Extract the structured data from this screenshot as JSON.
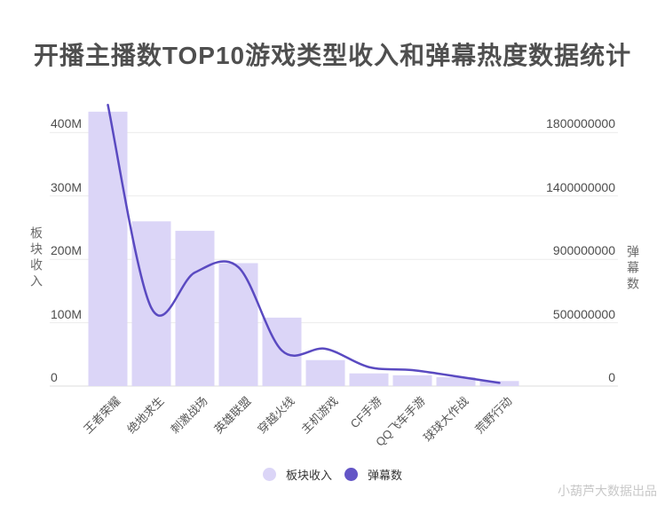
{
  "title": "开播主播数TOP10游戏类型收入和弹幕热度数据统计",
  "watermark": "小葫芦大数据出品",
  "colors": {
    "background": "#ffffff",
    "bar": "#dbd5f7",
    "line": "#5a4ac1",
    "gridline": "#ebebeb",
    "axis_line": "#dcdcdc",
    "title_text": "#4f4f4f",
    "tick_text": "#4d4d4d",
    "category_text": "#565656",
    "legend_dark_dot": "#6355c6",
    "watermark_text": "#c8c8c8"
  },
  "left_axis": {
    "title": "板块收入",
    "ticks": [
      "0",
      "100M",
      "200M",
      "300M",
      "400M"
    ]
  },
  "right_axis": {
    "title": "弹幕数",
    "ticks": [
      "0",
      "500000000",
      "900000000",
      "1400000000",
      "1800000000"
    ]
  },
  "legend": [
    {
      "label": "板块收入",
      "color": "#dbd5f7"
    },
    {
      "label": "弹幕数",
      "color": "#6355c6"
    }
  ],
  "chart_data": {
    "type": "bar+line",
    "title": "开播主播数TOP10游戏类型收入和弹幕热度数据统计",
    "categories": [
      "王者荣耀",
      "绝地求生",
      "刺激战场",
      "英雄联盟",
      "穿越火线",
      "主机游戏",
      "CF手游",
      "QQ飞车手游",
      "球球大作战",
      "荒野行动"
    ],
    "series": [
      {
        "name": "板块收入",
        "type": "bar",
        "axis": "left",
        "values": [
          433000000,
          260000000,
          245000000,
          194000000,
          108000000,
          41000000,
          20000000,
          17000000,
          14000000,
          8000000
        ]
      },
      {
        "name": "弹幕数",
        "type": "line",
        "axis": "right",
        "values": [
          1975000000,
          593000000,
          817000000,
          850000000,
          280000000,
          294000000,
          150000000,
          126000000,
          77000000,
          25000000
        ]
      }
    ],
    "left_axis_tick_values": [
      0,
      100000000,
      200000000,
      300000000,
      400000000
    ],
    "right_axis_tick_values": [
      0,
      500000000,
      900000000,
      1400000000,
      1800000000
    ],
    "xlabel": "",
    "ylabel_left": "板块收入",
    "ylabel_right": "弹幕数",
    "grid": true,
    "legend_position": "bottom",
    "x_labels_rotation_deg": -45
  }
}
